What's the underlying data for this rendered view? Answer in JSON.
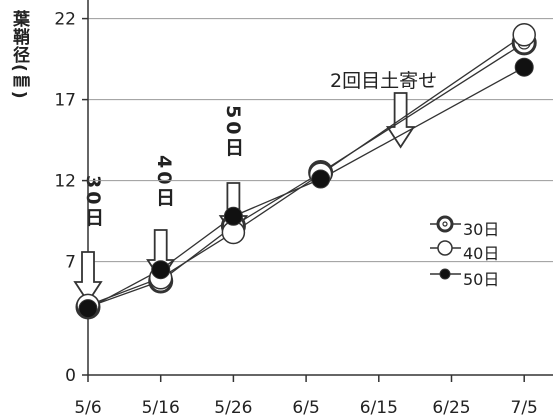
{
  "chart_data": {
    "type": "line",
    "ylabel": "葉鞘径(㎜)",
    "x_ticks": [
      "5/6",
      "5/16",
      "5/26",
      "6/5",
      "6/15",
      "6/25",
      "7/5"
    ],
    "y_ticks": [
      0,
      7,
      12,
      17,
      22
    ],
    "ylim": [
      0,
      24
    ],
    "x": [
      "5/6",
      "5/16",
      "5/26",
      "6/7",
      "7/5"
    ],
    "series": [
      {
        "name": "30日",
        "marker": "double-ring",
        "values": [
          4.2,
          5.8,
          9.2,
          12.5,
          20.5
        ]
      },
      {
        "name": "40日",
        "marker": "open-circle",
        "values": [
          4.3,
          6.0,
          8.8,
          12.4,
          21.0
        ]
      },
      {
        "name": "50日",
        "marker": "filled-circle",
        "values": [
          4.1,
          6.5,
          9.8,
          12.1,
          19.0
        ]
      }
    ],
    "annotations": [
      {
        "text": "30日",
        "target": "5/6"
      },
      {
        "text": "40日",
        "target": "5/16"
      },
      {
        "text": "50日",
        "target": "5/26"
      },
      {
        "text": "2回目土寄せ",
        "target": "6/18"
      }
    ],
    "grid": true,
    "legend_position": "right"
  },
  "colors": {
    "line": "#333333",
    "grid": "#999999",
    "marker_fill": "#111111"
  }
}
